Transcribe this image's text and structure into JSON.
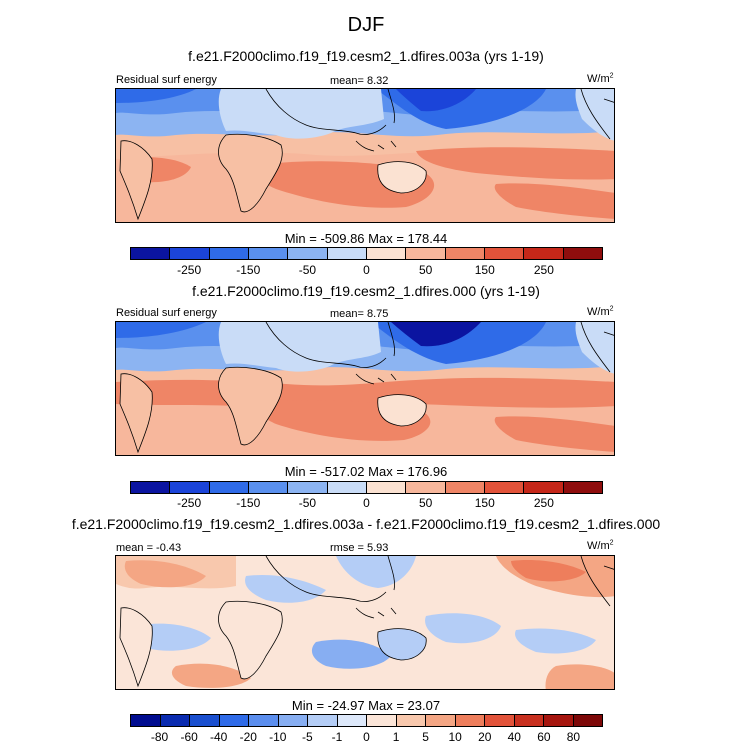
{
  "season": "DJF",
  "colors": {
    "scale11": [
      "#0b14a0",
      "#1b44d9",
      "#2f6be8",
      "#5a90ee",
      "#8cb4f2",
      "#c9dcf7",
      "#fbe2d2",
      "#f7b79c",
      "#ef8566",
      "#e2533a",
      "#c52719",
      "#8f0d0d"
    ],
    "scale16": [
      "#000c8f",
      "#0a2bb0",
      "#1a4fcf",
      "#2f6be8",
      "#5b8eee",
      "#87aef2",
      "#b4cdf6",
      "#dde8fa",
      "#fbe5d8",
      "#f8c8ad",
      "#f4a684",
      "#ee7e5c",
      "#e2533a",
      "#c8301f",
      "#a6160f",
      "#7d0808"
    ]
  },
  "panels": [
    {
      "title": "f.e21.F2000climo.f19_f19.cesm2_1.dfires.003a (yrs 1-19)",
      "left_label": "Residual surf energy",
      "stat_text": "mean=   8.32",
      "units": "W/m",
      "units_sup": "2",
      "minmax": "Min = -509.86 Max = 178.44",
      "colorbar_ticks": [
        "-250",
        "-150",
        "-50",
        "0",
        "50",
        "150",
        "250"
      ]
    },
    {
      "title": "f.e21.F2000climo.f19_f19.cesm2_1.dfires.000 (yrs 1-19)",
      "left_label": "Residual surf energy",
      "stat_text": "mean=   8.75",
      "units": "W/m",
      "units_sup": "2",
      "minmax": "Min = -517.02 Max = 176.96",
      "colorbar_ticks": [
        "-250",
        "-150",
        "-50",
        "0",
        "50",
        "150",
        "250"
      ]
    },
    {
      "title": "f.e21.F2000climo.f19_f19.cesm2_1.dfires.003a - f.e21.F2000climo.f19_f19.cesm2_1.dfires.000",
      "left_label": "mean =  -0.43",
      "stat_text": "rmse =   5.93",
      "units": "W/m",
      "units_sup": "2",
      "minmax": "Min = -24.97 Max = 23.07",
      "colorbar_ticks": [
        "-80",
        "-60",
        "-40",
        "-20",
        "-10",
        "-5",
        "-1",
        "0",
        "1",
        "5",
        "10",
        "20",
        "40",
        "60",
        "80"
      ]
    }
  ],
  "chart_data": [
    {
      "type": "heatmap",
      "title": "f.e21.F2000climo.f19_f19.cesm2_1.dfires.003a (yrs 1-19)",
      "variable": "Residual surf energy",
      "units": "W/m2",
      "mean": 8.32,
      "min": -509.86,
      "max": 178.44,
      "levels": [
        -250,
        -200,
        -150,
        -100,
        -50,
        0,
        50,
        100,
        150,
        200,
        250
      ]
    },
    {
      "type": "heatmap",
      "title": "f.e21.F2000climo.f19_f19.cesm2_1.dfires.000 (yrs 1-19)",
      "variable": "Residual surf energy",
      "units": "W/m2",
      "mean": 8.75,
      "min": -517.02,
      "max": 176.96,
      "levels": [
        -250,
        -200,
        -150,
        -100,
        -50,
        0,
        50,
        100,
        150,
        200,
        250
      ]
    },
    {
      "type": "heatmap",
      "title": "f.e21.F2000climo.f19_f19.cesm2_1.dfires.003a - f.e21.F2000climo.f19_f19.cesm2_1.dfires.000",
      "units": "W/m2",
      "mean": -0.43,
      "rmse": 5.93,
      "min": -24.97,
      "max": 23.07,
      "levels": [
        -80,
        -60,
        -40,
        -20,
        -10,
        -5,
        -1,
        0,
        1,
        5,
        10,
        20,
        40,
        60,
        80
      ]
    }
  ]
}
